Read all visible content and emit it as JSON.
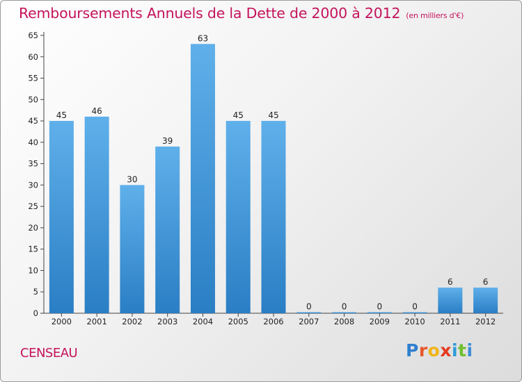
{
  "header": {
    "title": "Remboursements Annuels de la Dette de 2000 à 2012",
    "unit": "(en milliers d'€)"
  },
  "commune": "CENSEAU",
  "brand": [
    "P",
    "r",
    "o",
    "x",
    "i",
    "t",
    "i"
  ],
  "colors": {
    "bar_top": "#5fb0ea",
    "bar_bottom": "#2a7ec4",
    "title": "#c4135c",
    "axis": "#444444"
  },
  "chart_data": {
    "type": "bar",
    "title": "Remboursements Annuels de la Dette de 2000 à 2012",
    "subtitle": "(en milliers d'€)",
    "xlabel": "",
    "ylabel": "",
    "categories": [
      "2000",
      "2001",
      "2002",
      "2003",
      "2004",
      "2005",
      "2006",
      "2007",
      "2008",
      "2009",
      "2010",
      "2011",
      "2012"
    ],
    "values": [
      45,
      46,
      30,
      39,
      63,
      45,
      45,
      0,
      0,
      0,
      0,
      6,
      6
    ],
    "ylim": [
      0,
      65
    ],
    "yticks": [
      0,
      5,
      10,
      15,
      20,
      25,
      30,
      35,
      40,
      45,
      50,
      55,
      60,
      65
    ],
    "grid": false,
    "legend": "none"
  }
}
